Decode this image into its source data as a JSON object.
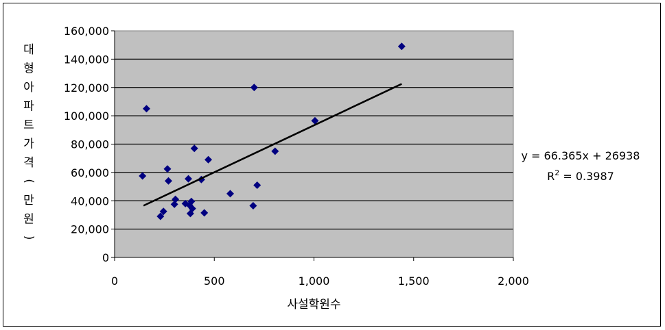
{
  "chart_data": {
    "type": "scatter",
    "xlabel": "사설학원수",
    "ylabel": "대형아파트가격(만원)",
    "xlim": [
      0,
      2000
    ],
    "ylim": [
      0,
      160000
    ],
    "x_ticks": [
      0,
      500,
      1000,
      1500,
      2000
    ],
    "x_tick_labels": [
      "0",
      "500",
      "1,000",
      "1,500",
      "2,000"
    ],
    "y_ticks": [
      0,
      20000,
      40000,
      60000,
      80000,
      100000,
      120000,
      140000,
      160000
    ],
    "y_tick_labels": [
      "0",
      "20,000",
      "40,000",
      "60,000",
      "80,000",
      "100,000",
      "120,000",
      "140,000",
      "160,000"
    ],
    "grid": "horizontal",
    "legend": "none",
    "plot_background": "#C0C0C0",
    "marker_color": "#000080",
    "marker": "diamond",
    "trendline": {
      "type": "linear",
      "slope": 66.365,
      "intercept": 26938,
      "x_range": [
        145,
        1440
      ],
      "color": "#000000",
      "equation_text": "y = 66.365x + 26938",
      "r2_prefix": "R",
      "r2_superscript": "2",
      "r2_suffix": " = 0.3987"
    },
    "series": [
      {
        "points": [
          [
            140,
            57500
          ],
          [
            160,
            105000
          ],
          [
            230,
            29000
          ],
          [
            245,
            32500
          ],
          [
            265,
            62500
          ],
          [
            270,
            54000
          ],
          [
            300,
            37500
          ],
          [
            305,
            41000
          ],
          [
            355,
            38000
          ],
          [
            370,
            55500
          ],
          [
            375,
            37000
          ],
          [
            380,
            31000
          ],
          [
            385,
            39500
          ],
          [
            390,
            34500
          ],
          [
            400,
            77000
          ],
          [
            435,
            55000
          ],
          [
            450,
            31500
          ],
          [
            470,
            69000
          ],
          [
            580,
            45000
          ],
          [
            695,
            36500
          ],
          [
            700,
            120000
          ],
          [
            715,
            51000
          ],
          [
            805,
            75000
          ],
          [
            1005,
            96500
          ],
          [
            1440,
            149000
          ]
        ]
      }
    ]
  }
}
